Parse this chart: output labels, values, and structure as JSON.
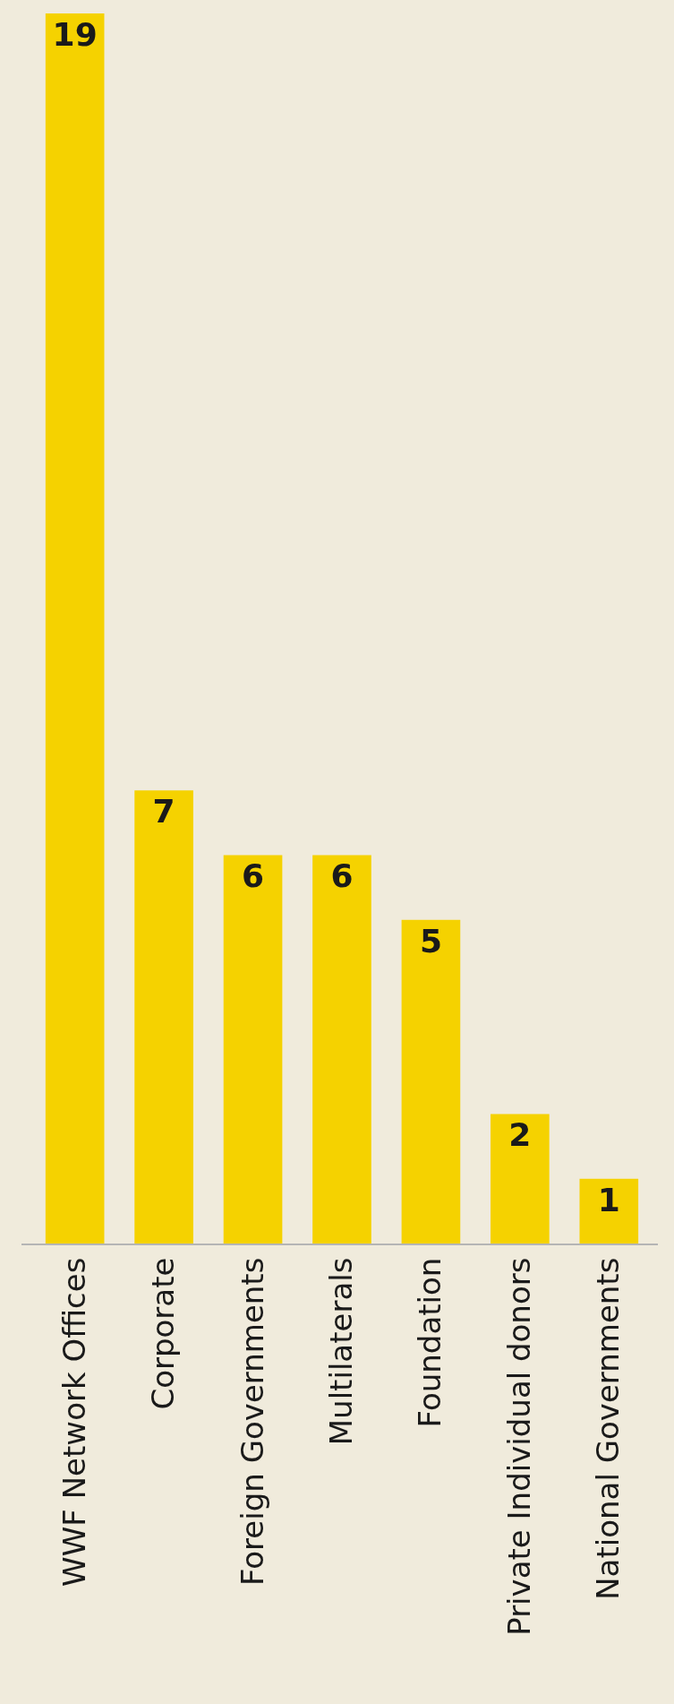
{
  "chart_data": {
    "type": "bar",
    "categories": [
      "WWF Network Offices",
      "Corporate",
      "Foreign Governments",
      "Multilaterals",
      "Foundation",
      "Private Individual donors",
      "National Governments"
    ],
    "values": [
      19,
      7,
      6,
      6,
      5,
      2,
      1
    ],
    "color": "#f5d200",
    "data_labels": true
  }
}
